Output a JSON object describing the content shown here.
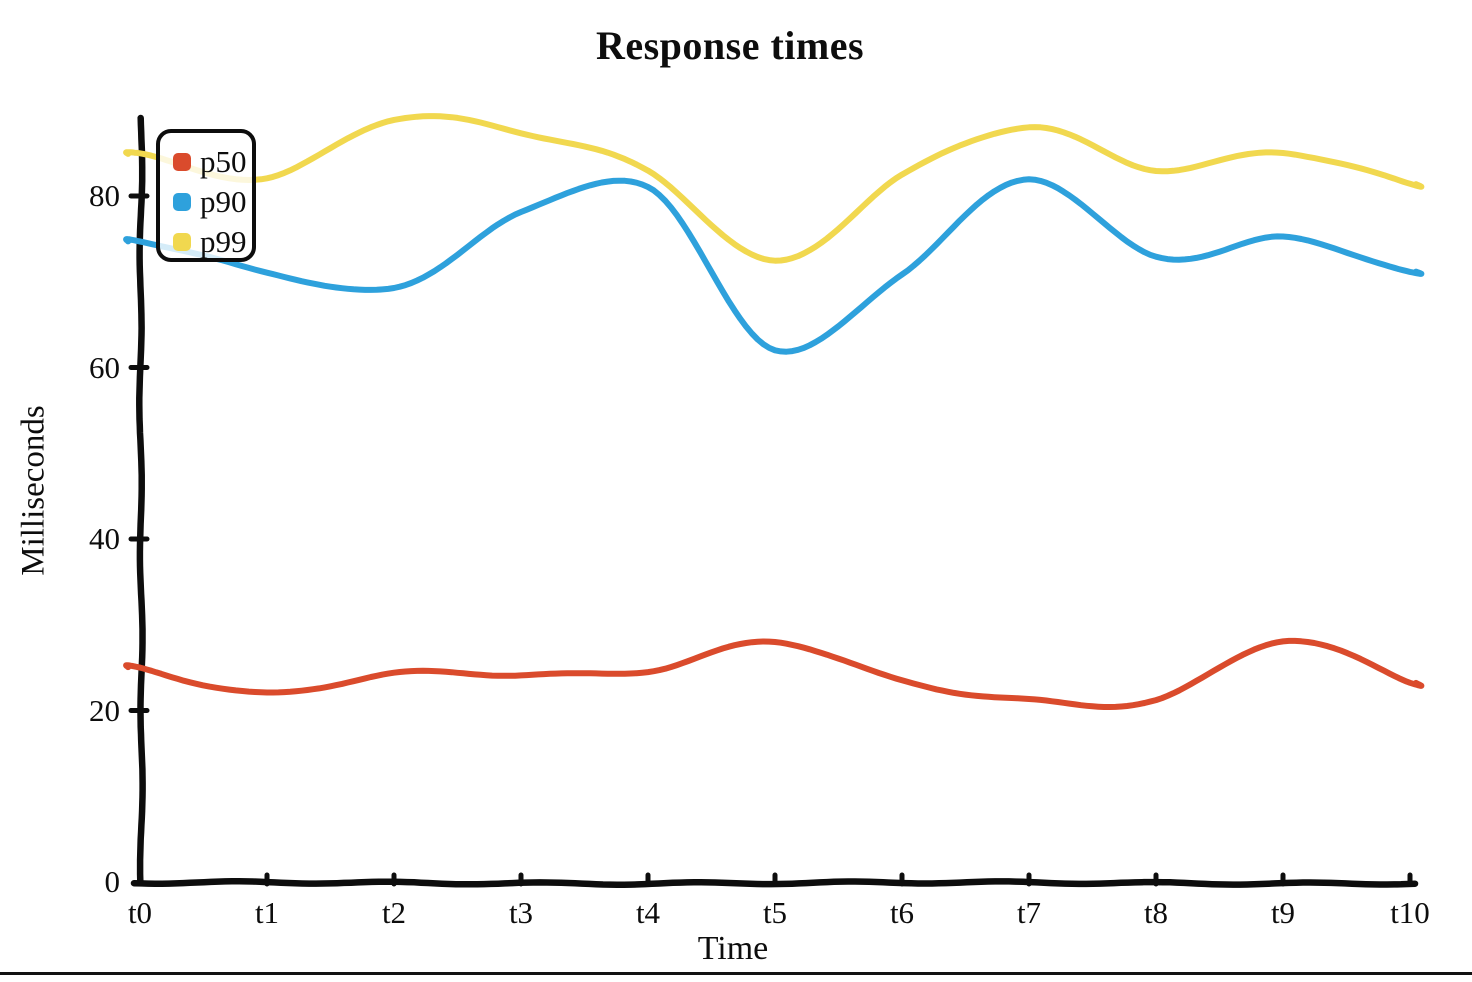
{
  "chart_data": {
    "type": "line",
    "title": "Response times",
    "xlabel": "Time",
    "ylabel": "Milliseconds",
    "x": [
      "t0",
      "t1",
      "t2",
      "t3",
      "t4",
      "t5",
      "t6",
      "t7",
      "t8",
      "t9",
      "t10"
    ],
    "series": [
      {
        "name": "p50",
        "color": "#DA4B2C",
        "values": [
          25.0,
          22.0,
          24.3,
          24.1,
          24.6,
          28.1,
          23.5,
          21.2,
          21.1,
          28.1,
          23.4
        ]
      },
      {
        "name": "p90",
        "color": "#2EA1DC",
        "values": [
          74.8,
          71.2,
          69.3,
          78.0,
          80.9,
          62.0,
          71.0,
          82.1,
          72.9,
          75.1,
          71.0
        ]
      },
      {
        "name": "p99",
        "color": "#F1D84F",
        "values": [
          84.8,
          82.0,
          89.0,
          87.5,
          83.0,
          72.3,
          82.3,
          88.0,
          83.1,
          85.2,
          81.4
        ]
      }
    ],
    "ylim": [
      0,
      93
    ],
    "yticks": [
      0,
      20,
      40,
      60,
      80
    ],
    "legend_position": "top-left",
    "grid": false,
    "style": "hand-drawn",
    "axis_color": "#0d0d0d",
    "background_color": "#ffffff"
  }
}
